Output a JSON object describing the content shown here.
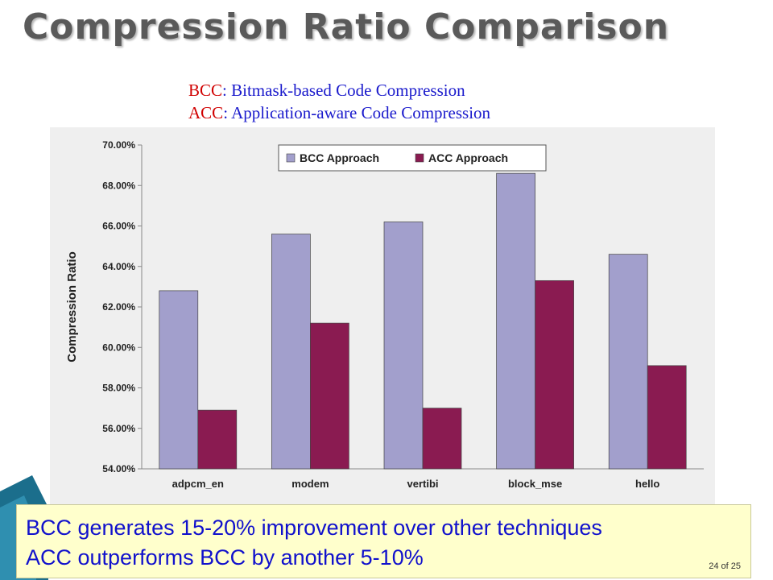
{
  "slide": {
    "title": "Compression Ratio Comparison",
    "definitions": [
      {
        "abbr": "BCC",
        "text": ": Bitmask-based Code Compression"
      },
      {
        "abbr": "ACC",
        "text": ": Application-aware Code Compression"
      }
    ],
    "callout": {
      "lines": [
        "BCC generates 15-20% improvement over other techniques",
        "ACC outperforms BCC by another 5-10%"
      ]
    },
    "page_number": "24 of 25"
  },
  "colors": {
    "bcc": "#a29fcc",
    "acc": "#8a1b51",
    "title": "#5a5a5a",
    "definition_text": "#1a1acc",
    "definition_abbr": "#d00000",
    "callout_bg": "#ffffcc",
    "callout_text": "#1111cc",
    "accent_teal": "#1b6e8c"
  },
  "chart_data": {
    "type": "bar",
    "title": "",
    "xlabel": "",
    "ylabel": "Compression Ratio",
    "ylim": [
      54,
      70
    ],
    "yticks": [
      54,
      56,
      58,
      60,
      62,
      64,
      66,
      68,
      70
    ],
    "ytick_labels": [
      "54.00%",
      "56.00%",
      "58.00%",
      "60.00%",
      "62.00%",
      "64.00%",
      "66.00%",
      "68.00%",
      "70.00%"
    ],
    "categories": [
      "adpcm_en",
      "modem",
      "vertibi",
      "block_mse",
      "hello"
    ],
    "series": [
      {
        "name": "BCC Approach",
        "values": [
          62.8,
          65.6,
          66.2,
          68.6,
          64.6
        ]
      },
      {
        "name": "ACC Approach",
        "values": [
          56.9,
          61.2,
          57.0,
          63.3,
          59.1
        ]
      }
    ],
    "legend": "top-center",
    "grid": false
  }
}
